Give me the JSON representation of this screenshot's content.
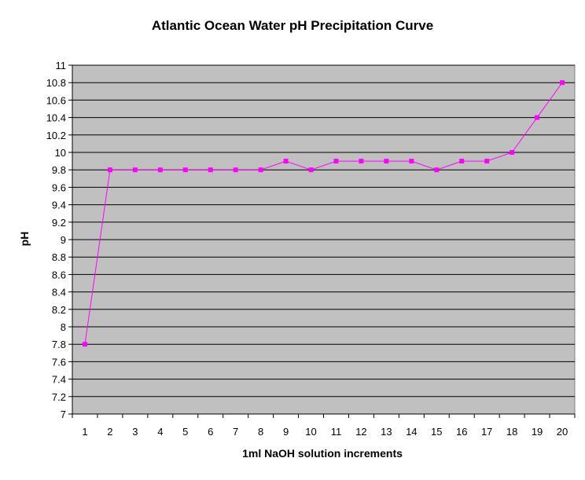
{
  "chart_data": {
    "type": "line",
    "title": "Atlantic Ocean Water pH Precipitation Curve",
    "xlabel": "1ml NaOH solution increments",
    "ylabel": "pH",
    "categories": [
      "1",
      "2",
      "3",
      "4",
      "5",
      "6",
      "7",
      "8",
      "9",
      "10",
      "11",
      "12",
      "13",
      "14",
      "15",
      "16",
      "17",
      "18",
      "19",
      "20"
    ],
    "series": [
      {
        "name": "pH",
        "values": [
          7.8,
          9.8,
          9.8,
          9.8,
          9.8,
          9.8,
          9.8,
          9.8,
          9.9,
          9.8,
          9.9,
          9.9,
          9.9,
          9.9,
          9.8,
          9.9,
          9.9,
          10.0,
          10.4,
          10.8
        ]
      }
    ],
    "ylim": [
      7,
      11
    ],
    "yticks": [
      "7",
      "7.2",
      "7.4",
      "7.6",
      "7.8",
      "8",
      "8.2",
      "8.4",
      "8.6",
      "8.8",
      "9",
      "9.2",
      "9.4",
      "9.6",
      "9.8",
      "10",
      "10.2",
      "10.4",
      "10.6",
      "10.8",
      "11"
    ],
    "grid": true,
    "colors": {
      "plot_background": "#c0c0c0",
      "line": "#ff00ff",
      "gridline": "#000000"
    }
  }
}
